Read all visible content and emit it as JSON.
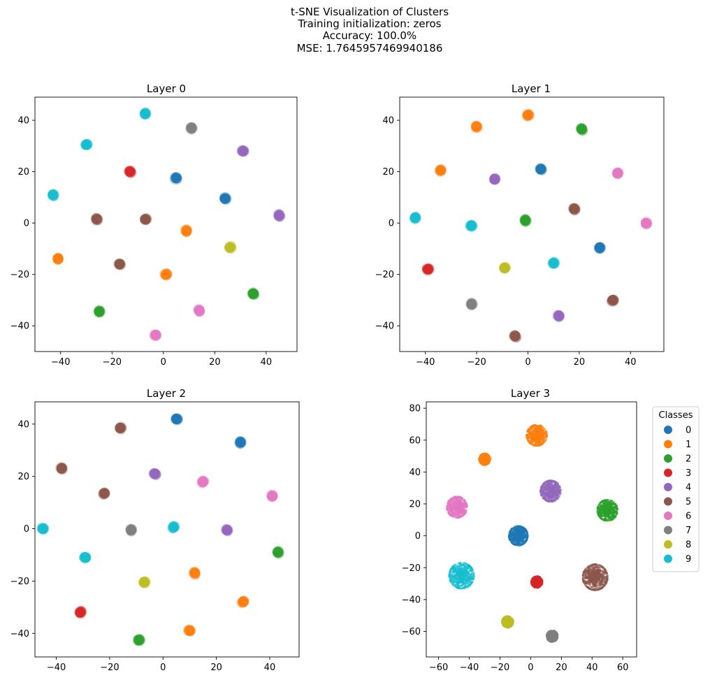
{
  "figure": {
    "title_lines": [
      "t-SNE Visualization of Clusters",
      "Training initialization: zeros",
      "Accuracy: 100.0%",
      "MSE: 1.7645957469940186"
    ]
  },
  "palette": [
    "#1f77b4",
    "#ff7f0e",
    "#2ca02c",
    "#d62728",
    "#9467bd",
    "#8c564b",
    "#e377c2",
    "#7f7f7f",
    "#bcbd22",
    "#17becf"
  ],
  "legend": {
    "title": "Classes",
    "labels": [
      "0",
      "1",
      "2",
      "3",
      "4",
      "5",
      "6",
      "7",
      "8",
      "9"
    ]
  },
  "chart_data": [
    {
      "type": "scatter",
      "title": "Layer 0",
      "xlim": [
        -50,
        52
      ],
      "ylim": [
        -50,
        49
      ],
      "xticks": [
        -40,
        -20,
        0,
        20,
        40
      ],
      "yticks": [
        -40,
        -20,
        0,
        20,
        40
      ],
      "clusters": [
        {
          "class": 0,
          "x": 5,
          "y": 17.5
        },
        {
          "class": 0,
          "x": 24,
          "y": 9.5
        },
        {
          "class": 1,
          "x": 9,
          "y": -3
        },
        {
          "class": 1,
          "x": 1,
          "y": -20
        },
        {
          "class": 1,
          "x": -41,
          "y": -14
        },
        {
          "class": 2,
          "x": 35,
          "y": -27.5
        },
        {
          "class": 2,
          "x": -25,
          "y": -34.5
        },
        {
          "class": 3,
          "x": -13,
          "y": 20
        },
        {
          "class": 4,
          "x": 31,
          "y": 28
        },
        {
          "class": 4,
          "x": 45,
          "y": 3
        },
        {
          "class": 5,
          "x": -26,
          "y": 1.5
        },
        {
          "class": 5,
          "x": -7,
          "y": 1.5
        },
        {
          "class": 5,
          "x": -17,
          "y": -16
        },
        {
          "class": 6,
          "x": 14,
          "y": -34
        },
        {
          "class": 6,
          "x": -3,
          "y": -43.5
        },
        {
          "class": 7,
          "x": 11,
          "y": 37
        },
        {
          "class": 8,
          "x": 26,
          "y": -9.5
        },
        {
          "class": 9,
          "x": -7,
          "y": 42.5
        },
        {
          "class": 9,
          "x": -30,
          "y": 30.5
        },
        {
          "class": 9,
          "x": -43,
          "y": 11
        }
      ]
    },
    {
      "type": "scatter",
      "title": "Layer 1",
      "xlim": [
        -50,
        53
      ],
      "ylim": [
        -50,
        49
      ],
      "xticks": [
        -40,
        -20,
        0,
        20,
        40
      ],
      "yticks": [
        -40,
        -20,
        0,
        20,
        40
      ],
      "clusters": [
        {
          "class": 0,
          "x": 5,
          "y": 21
        },
        {
          "class": 0,
          "x": 28,
          "y": -9.5
        },
        {
          "class": 1,
          "x": 0,
          "y": 42
        },
        {
          "class": 1,
          "x": -20,
          "y": 37.5
        },
        {
          "class": 1,
          "x": -34,
          "y": 20.5
        },
        {
          "class": 2,
          "x": 21,
          "y": 36.5
        },
        {
          "class": 2,
          "x": -1,
          "y": 1
        },
        {
          "class": 3,
          "x": -39,
          "y": -18
        },
        {
          "class": 4,
          "x": -13,
          "y": 17
        },
        {
          "class": 4,
          "x": 12,
          "y": -36
        },
        {
          "class": 5,
          "x": 18,
          "y": 5.5
        },
        {
          "class": 5,
          "x": 33,
          "y": -30
        },
        {
          "class": 5,
          "x": -5,
          "y": -44
        },
        {
          "class": 6,
          "x": 35,
          "y": 19.5
        },
        {
          "class": 6,
          "x": 46,
          "y": 0
        },
        {
          "class": 7,
          "x": -22,
          "y": -31.5
        },
        {
          "class": 8,
          "x": -9,
          "y": -17.5
        },
        {
          "class": 9,
          "x": -44,
          "y": 2
        },
        {
          "class": 9,
          "x": -22,
          "y": -1
        },
        {
          "class": 9,
          "x": 10,
          "y": -15.5
        }
      ]
    },
    {
      "type": "scatter",
      "title": "Layer 2",
      "xlim": [
        -48,
        51
      ],
      "ylim": [
        -49,
        48.5
      ],
      "xticks": [
        -40,
        -20,
        0,
        20,
        40
      ],
      "yticks": [
        -40,
        -20,
        0,
        20,
        40
      ],
      "clusters": [
        {
          "class": 0,
          "x": 5,
          "y": 42
        },
        {
          "class": 0,
          "x": 29,
          "y": 33
        },
        {
          "class": 1,
          "x": 12,
          "y": -17
        },
        {
          "class": 1,
          "x": 30,
          "y": -28
        },
        {
          "class": 1,
          "x": 10,
          "y": -39
        },
        {
          "class": 2,
          "x": 43,
          "y": -9
        },
        {
          "class": 2,
          "x": -9,
          "y": -42.5
        },
        {
          "class": 3,
          "x": -31,
          "y": -32
        },
        {
          "class": 4,
          "x": -3,
          "y": 21
        },
        {
          "class": 4,
          "x": 24,
          "y": -0.5
        },
        {
          "class": 5,
          "x": -16,
          "y": 38.5
        },
        {
          "class": 5,
          "x": -38,
          "y": 23
        },
        {
          "class": 5,
          "x": -22,
          "y": 13.5
        },
        {
          "class": 6,
          "x": 15,
          "y": 18
        },
        {
          "class": 6,
          "x": 41,
          "y": 12.5
        },
        {
          "class": 7,
          "x": -12,
          "y": -0.5
        },
        {
          "class": 8,
          "x": -7,
          "y": -20.5
        },
        {
          "class": 9,
          "x": -45,
          "y": 0
        },
        {
          "class": 9,
          "x": 4,
          "y": 0.5
        },
        {
          "class": 9,
          "x": -29,
          "y": -11
        }
      ]
    },
    {
      "type": "scatter",
      "title": "Layer 3",
      "xlim": [
        -68,
        69
      ],
      "ylim": [
        -76,
        84
      ],
      "xticks": [
        -60,
        -40,
        -20,
        0,
        20,
        40,
        60
      ],
      "yticks": [
        -60,
        -40,
        -20,
        0,
        20,
        40,
        60,
        80
      ],
      "clusters": [
        {
          "class": 0,
          "x": -8,
          "y": 0,
          "spread": 6
        },
        {
          "class": 1,
          "x": 4,
          "y": 63,
          "spread": 6.5
        },
        {
          "class": 1,
          "x": -30,
          "y": 48,
          "spread": 3.5
        },
        {
          "class": 2,
          "x": 50,
          "y": 16,
          "spread": 6.5
        },
        {
          "class": 3,
          "x": 4,
          "y": -29,
          "spread": 3.5
        },
        {
          "class": 4,
          "x": 13,
          "y": 28,
          "spread": 6.5
        },
        {
          "class": 5,
          "x": 42,
          "y": -26,
          "spread": 8
        },
        {
          "class": 6,
          "x": -48,
          "y": 18,
          "spread": 6.5
        },
        {
          "class": 7,
          "x": 14,
          "y": -63,
          "spread": 3.5
        },
        {
          "class": 8,
          "x": -15,
          "y": -54,
          "spread": 3.5
        },
        {
          "class": 9,
          "x": -45,
          "y": -25,
          "spread": 8
        }
      ]
    }
  ]
}
